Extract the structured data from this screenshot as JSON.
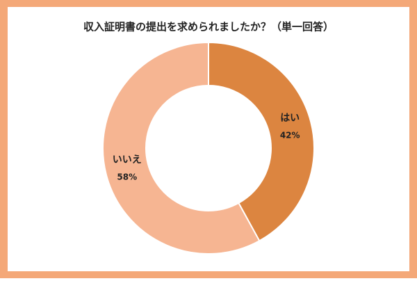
{
  "chart_data": {
    "type": "pie",
    "title": "収入証明書の提出を求められましたか？（単一回答）",
    "categories": [
      "はい",
      "いいえ"
    ],
    "values": [
      42,
      58
    ],
    "value_labels": [
      "42%",
      "58%"
    ],
    "colors": [
      "#dc8540",
      "#f6b592"
    ]
  }
}
